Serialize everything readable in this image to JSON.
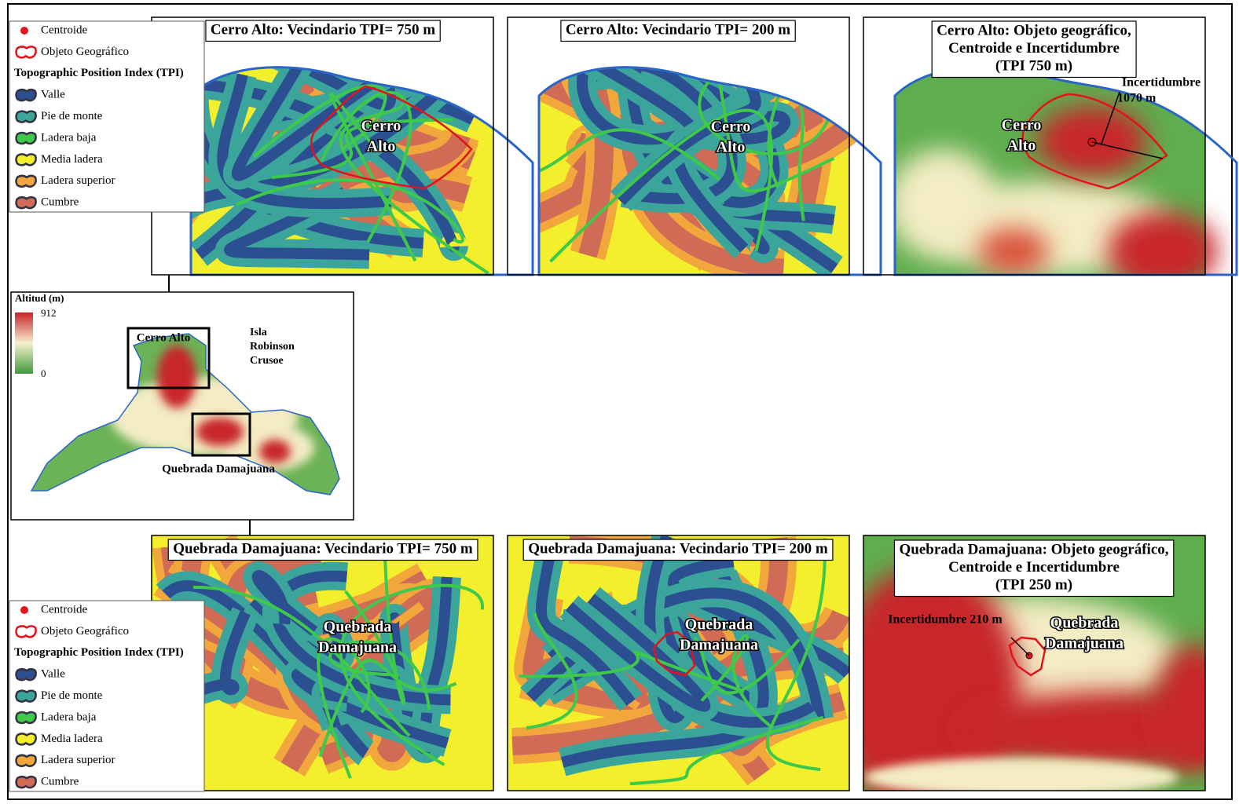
{
  "legend": {
    "centroid": "Centroide",
    "object": "Objeto Geográfico",
    "tpi_title": "Topographic Position Index (TPI)",
    "classes": [
      {
        "label": "Valle",
        "color": "#2c4f91"
      },
      {
        "label": "Pie de monte",
        "color": "#3ba59b"
      },
      {
        "label": "Ladera baja",
        "color": "#3ec94b"
      },
      {
        "label": "Media ladera",
        "color": "#f4ef2c"
      },
      {
        "label": "Ladera superior",
        "color": "#f2a73c"
      },
      {
        "label": "Cumbre",
        "color": "#d06b56"
      }
    ]
  },
  "top_panels": [
    {
      "title_lines": [
        "Cerro Alto: Vecindario TPI= 750 m"
      ],
      "place_label": [
        "Cerro",
        "Alto"
      ]
    },
    {
      "title_lines": [
        "Cerro Alto: Vecindario TPI= 200 m"
      ],
      "place_label": [
        "Cerro",
        "Alto"
      ]
    },
    {
      "title_lines": [
        "Cerro Alto: Objeto geográfico,",
        "Centroide e Incertidumbre",
        "(TPI 750 m)"
      ],
      "place_label": [
        "Cerro",
        "Alto"
      ],
      "uncertainty_label": [
        "Incertidumbre",
        "1070 m"
      ]
    }
  ],
  "overview": {
    "colorbar_title": "Altitud (m)",
    "max": 912,
    "min": 0,
    "island_label": [
      "Isla",
      "Robinson",
      "Crusoe"
    ],
    "box_labels": [
      "Cerro Alto",
      "Quebrada Damajuana"
    ]
  },
  "bottom_panels": [
    {
      "title_lines": [
        "Quebrada Damajuana: Vecindario TPI= 750 m"
      ],
      "place_label": [
        "Quebrada",
        "Damajuana"
      ]
    },
    {
      "title_lines": [
        "Quebrada Damajuana: Vecindario TPI= 200 m"
      ],
      "place_label": [
        "Quebrada",
        "Damajuana"
      ]
    },
    {
      "title_lines": [
        "Quebrada Damajuana: Objeto geográfico,",
        "Centroide e Incertidumbre",
        "(TPI 250 m)"
      ],
      "place_label": [
        "Quebrada",
        "Damajuana"
      ],
      "uncertainty_label": [
        "Incertidumbre 210 m"
      ]
    }
  ]
}
